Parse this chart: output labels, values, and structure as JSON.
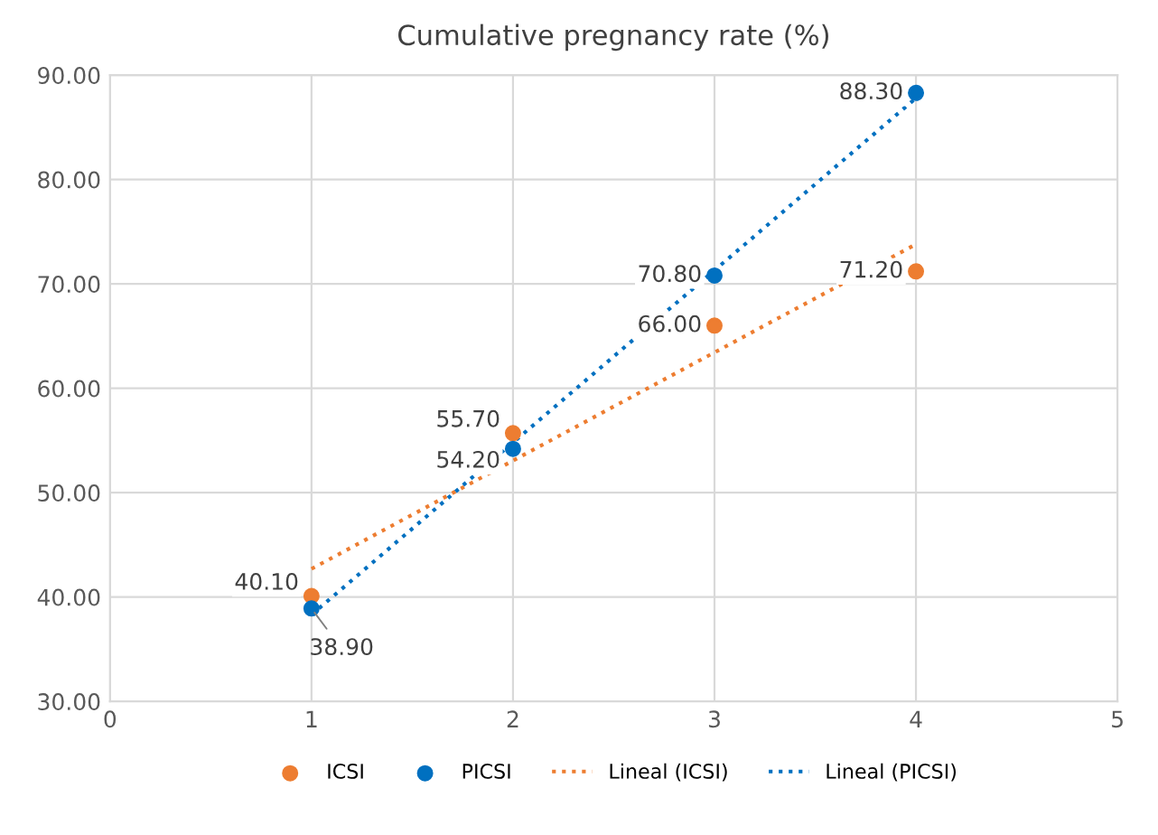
{
  "chart_data": {
    "type": "scatter",
    "title": "Cumulative pregnancy rate (%)",
    "series": [
      {
        "name": "ICSI",
        "color": "#ed7d31",
        "x": [
          1,
          2,
          3,
          4
        ],
        "values": [
          40.1,
          55.7,
          66.0,
          71.2
        ],
        "value_labels": [
          "40.10",
          "55.70",
          "66.00",
          "71.20"
        ],
        "marker": "circle"
      },
      {
        "name": "PICSI",
        "color": "#0070c0",
        "x": [
          1,
          2,
          3,
          4
        ],
        "values": [
          38.9,
          54.2,
          70.8,
          88.3
        ],
        "value_labels": [
          "38.90",
          "54.20",
          "70.80",
          "88.30"
        ],
        "marker": "circle"
      },
      {
        "name": "Lineal (ICSI)",
        "type": "line",
        "color": "#ed7d31",
        "x": [
          1,
          4
        ],
        "values": [
          42.7,
          73.8
        ],
        "line_style": "dotted"
      },
      {
        "name": "Lineal (PICSI)",
        "type": "line",
        "color": "#0070c0",
        "x": [
          1,
          4
        ],
        "values": [
          38.3,
          87.8
        ],
        "line_style": "dotted"
      }
    ],
    "xlim": [
      0,
      5
    ],
    "xticks": [
      0,
      1,
      2,
      3,
      4,
      5
    ],
    "ylim": [
      30,
      90
    ],
    "yticks": [
      {
        "value": 30,
        "label": "30.00"
      },
      {
        "value": 40,
        "label": "40.00"
      },
      {
        "value": 50,
        "label": "50.00"
      },
      {
        "value": 60,
        "label": "60.00"
      },
      {
        "value": 70,
        "label": "70.00"
      },
      {
        "value": 80,
        "label": "80.00"
      },
      {
        "value": 90,
        "label": "90.00"
      }
    ],
    "grid": true,
    "legend": "bottom"
  }
}
